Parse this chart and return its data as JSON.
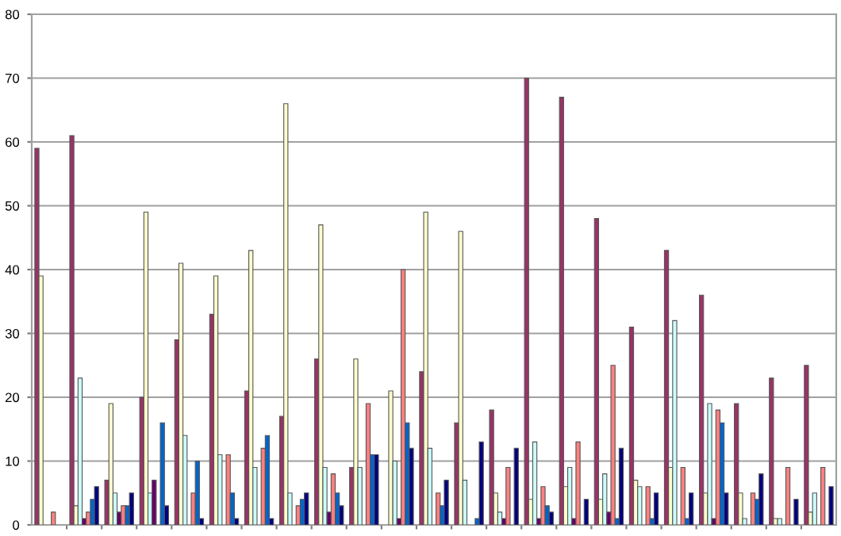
{
  "chart_data": {
    "type": "bar",
    "categories": [
      null,
      null,
      null,
      null,
      null,
      null,
      null,
      null,
      null,
      null,
      null,
      null,
      null,
      null,
      null,
      null,
      null,
      null,
      null,
      null,
      null,
      null,
      null
    ],
    "series": [
      {
        "color": "#993366",
        "values": [
          59,
          61,
          7,
          20,
          29,
          33,
          21,
          17,
          26,
          9,
          null,
          24,
          16,
          18,
          70,
          67,
          48,
          31,
          43,
          36,
          19,
          23,
          25
        ]
      },
      {
        "color": "#ffffcc",
        "values": [
          39,
          3,
          19,
          49,
          41,
          39,
          43,
          66,
          47,
          26,
          21,
          49,
          46,
          5,
          4,
          6,
          4,
          7,
          9,
          5,
          5,
          1,
          2
        ]
      },
      {
        "color": "#ccffff",
        "values": [
          null,
          23,
          5,
          5,
          14,
          11,
          9,
          5,
          9,
          9,
          10,
          12,
          7,
          2,
          13,
          9,
          8,
          6,
          32,
          19,
          1,
          1,
          5
        ]
      },
      {
        "color": "#660066",
        "values": [
          null,
          1,
          2,
          7,
          null,
          null,
          null,
          null,
          2,
          null,
          1,
          null,
          null,
          1,
          1,
          1,
          2,
          null,
          null,
          1,
          null,
          null,
          null
        ]
      },
      {
        "color": "#ff8080",
        "values": [
          2,
          2,
          3,
          null,
          5,
          11,
          12,
          3,
          8,
          19,
          40,
          5,
          null,
          9,
          6,
          13,
          25,
          6,
          9,
          18,
          5,
          9,
          9
        ]
      },
      {
        "color": "#0066cc",
        "values": [
          null,
          4,
          3,
          16,
          10,
          5,
          14,
          4,
          5,
          11,
          16,
          3,
          1,
          null,
          3,
          null,
          1,
          1,
          1,
          16,
          4,
          null,
          null
        ]
      },
      {
        "color": "#000080",
        "values": [
          null,
          6,
          5,
          3,
          1,
          1,
          1,
          5,
          3,
          11,
          12,
          7,
          13,
          12,
          2,
          4,
          12,
          5,
          5,
          5,
          8,
          4,
          6
        ]
      }
    ],
    "ylim": [
      0,
      80
    ],
    "yticks": [
      0,
      10,
      20,
      30,
      40,
      50,
      60,
      70,
      80
    ],
    "grid": "y",
    "tick_labels": "y"
  }
}
